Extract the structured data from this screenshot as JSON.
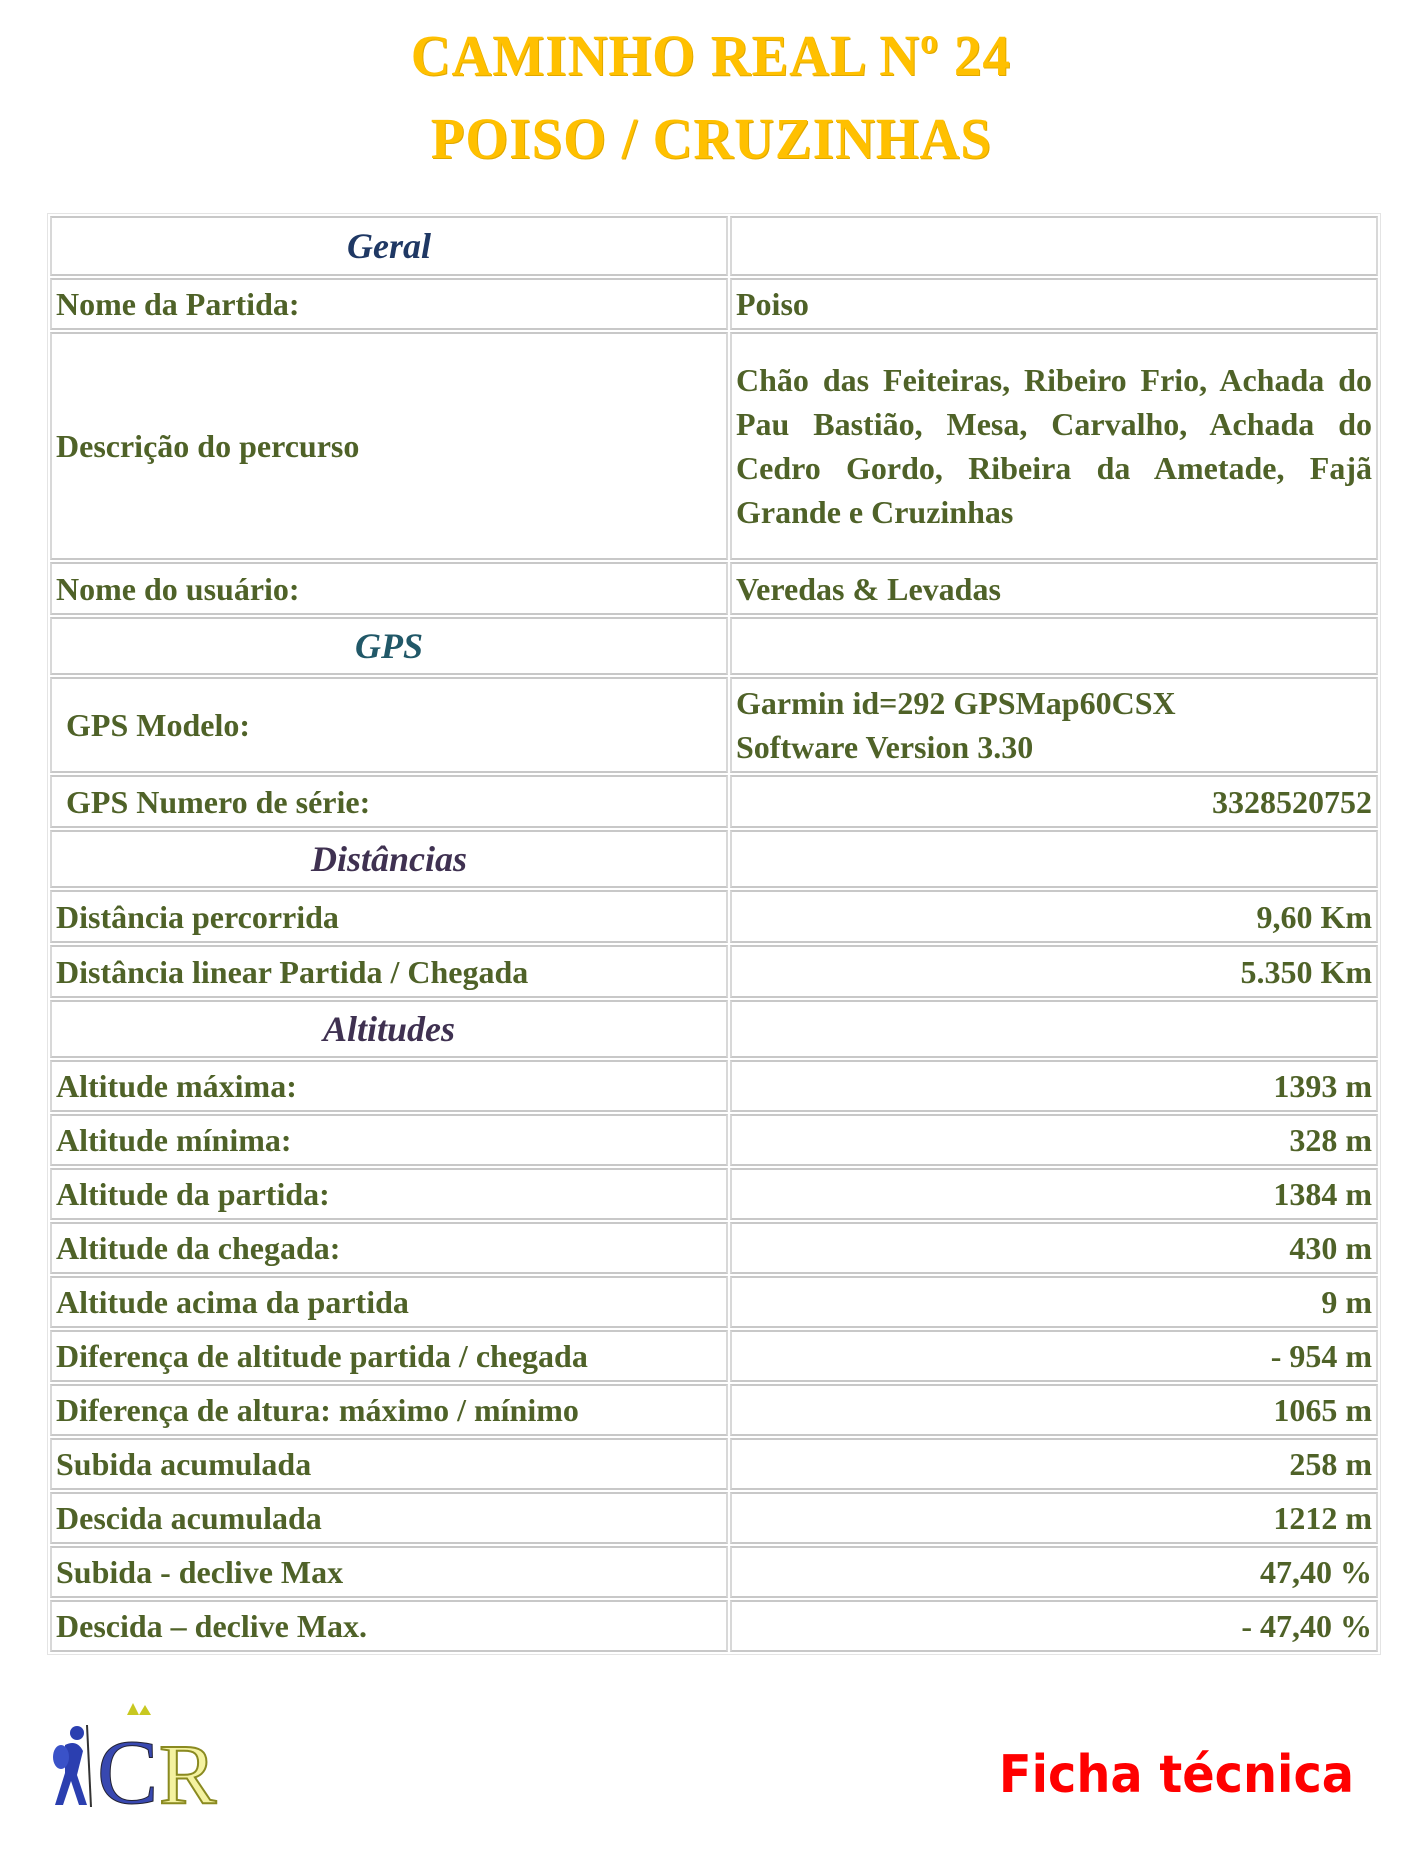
{
  "header": {
    "title_line1": "Caminho Real Nº 24",
    "title_line2": "Poiso / Cruzinhas"
  },
  "colors": {
    "title": "#ffc000",
    "text": "#4f6228",
    "geral": "#1f3864",
    "gps": "#215868",
    "section": "#3f3151",
    "footer": "#ff0000"
  },
  "sections": {
    "geral": "Geral",
    "gps": "GPS",
    "distancias": "Distâncias",
    "altitudes": "Altitudes"
  },
  "rows": {
    "nome_partida": {
      "label": "Nome da Partida:",
      "value": "Poiso"
    },
    "descricao": {
      "label": "Descrição do percurso",
      "value": "Chão das Feiteiras, Ribeiro Frio, Achada do Pau Bastião, Mesa, Carvalho, Achada do Cedro Gordo, Ribeira da Ametade, Fajã Grande e Cruzinhas"
    },
    "usuario": {
      "label": "Nome do usuário:",
      "value": "Veredas & Levadas"
    },
    "gps_modelo": {
      "label": "GPS Modelo:",
      "value_line1": "Garmin id=292 GPSMap60CSX",
      "value_line2": "Software Version 3.30"
    },
    "gps_serie": {
      "label": "GPS Numero de série:",
      "value": "3328520752"
    },
    "dist_percorrida": {
      "label": "Distância percorrida",
      "value": "9,60 Km"
    },
    "dist_linear": {
      "label": "Distância linear Partida / Chegada",
      "value": "5.350 Km"
    }
  },
  "altitudes": [
    {
      "label": "Altitude máxima:",
      "value": "1393 m"
    },
    {
      "label": "Altitude mínima:",
      "value": "328 m"
    },
    {
      "label": "Altitude da partida:",
      "value": "1384 m"
    },
    {
      "label": "Altitude da chegada:",
      "value": "430 m"
    },
    {
      "label": "Altitude acima da partida",
      "value": "9 m"
    },
    {
      "label": "Diferença de altitude partida / chegada",
      "value": "- 954 m"
    },
    {
      "label": "Diferença de altura: máximo / mínimo",
      "value": "1065 m"
    },
    {
      "label": "Subida acumulada",
      "value": "258 m"
    },
    {
      "label": "Descida acumulada",
      "value": "1212 m"
    },
    {
      "label": "Subida - declive Max",
      "value": "47,40 %"
    },
    {
      "label": "Descida – declive Max.",
      "value": "- 47,40 %"
    }
  ],
  "footer": {
    "label": "Ficha técnica",
    "logo_text": "CR"
  }
}
